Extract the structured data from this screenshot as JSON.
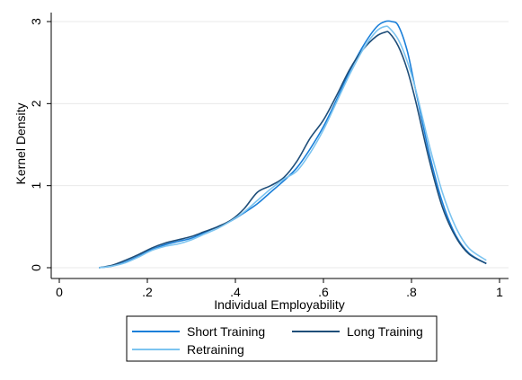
{
  "chart_data": {
    "type": "line",
    "xlabel": "Individual Employability",
    "ylabel": "Kernel Density",
    "xlim": [
      0,
      1
    ],
    "ylim": [
      0,
      3
    ],
    "x_ticks": [
      0,
      0.2,
      0.4,
      0.6,
      0.8,
      1
    ],
    "x_tick_labels": [
      "0",
      ".2",
      ".4",
      ".6",
      ".8",
      "1"
    ],
    "y_ticks": [
      0,
      1,
      2,
      3
    ],
    "y_tick_labels": [
      "0",
      "1",
      "2",
      "3"
    ],
    "grid": "horizontal",
    "legend_placement": "bottom",
    "series": [
      {
        "name": "Short Training",
        "color": "#1a7fd9",
        "x": [
          0.09,
          0.12,
          0.15,
          0.18,
          0.21,
          0.24,
          0.27,
          0.3,
          0.33,
          0.36,
          0.39,
          0.42,
          0.45,
          0.48,
          0.51,
          0.54,
          0.57,
          0.6,
          0.63,
          0.66,
          0.69,
          0.72,
          0.74,
          0.755,
          0.77,
          0.79,
          0.81,
          0.84,
          0.87,
          0.9,
          0.93,
          0.97
        ],
        "y": [
          0.0,
          0.02,
          0.07,
          0.14,
          0.22,
          0.28,
          0.32,
          0.36,
          0.43,
          0.5,
          0.57,
          0.67,
          0.78,
          0.92,
          1.06,
          1.22,
          1.45,
          1.72,
          2.05,
          2.4,
          2.7,
          2.93,
          3.0,
          3.0,
          2.95,
          2.65,
          2.15,
          1.4,
          0.8,
          0.4,
          0.18,
          0.05
        ]
      },
      {
        "name": "Long Training",
        "color": "#1f4e79",
        "x": [
          0.09,
          0.12,
          0.15,
          0.18,
          0.21,
          0.24,
          0.27,
          0.3,
          0.33,
          0.36,
          0.39,
          0.42,
          0.45,
          0.48,
          0.51,
          0.54,
          0.57,
          0.6,
          0.63,
          0.66,
          0.69,
          0.72,
          0.74,
          0.75,
          0.77,
          0.79,
          0.81,
          0.84,
          0.87,
          0.9,
          0.93,
          0.97
        ],
        "y": [
          0.0,
          0.03,
          0.09,
          0.16,
          0.24,
          0.3,
          0.34,
          0.38,
          0.44,
          0.5,
          0.58,
          0.72,
          0.92,
          1.0,
          1.1,
          1.3,
          1.58,
          1.8,
          2.1,
          2.42,
          2.66,
          2.82,
          2.87,
          2.86,
          2.7,
          2.42,
          2.02,
          1.32,
          0.74,
          0.38,
          0.17,
          0.05
        ]
      },
      {
        "name": "Retraining",
        "color": "#7cc4f0",
        "x": [
          0.09,
          0.12,
          0.15,
          0.18,
          0.21,
          0.24,
          0.27,
          0.3,
          0.33,
          0.36,
          0.39,
          0.42,
          0.45,
          0.48,
          0.51,
          0.54,
          0.57,
          0.6,
          0.63,
          0.66,
          0.69,
          0.72,
          0.74,
          0.75,
          0.77,
          0.79,
          0.81,
          0.84,
          0.87,
          0.9,
          0.93,
          0.97
        ],
        "y": [
          0.0,
          0.02,
          0.06,
          0.13,
          0.21,
          0.26,
          0.29,
          0.34,
          0.41,
          0.48,
          0.57,
          0.68,
          0.82,
          0.96,
          1.08,
          1.18,
          1.4,
          1.68,
          2.02,
          2.36,
          2.66,
          2.88,
          2.94,
          2.92,
          2.78,
          2.52,
          2.16,
          1.5,
          0.92,
          0.5,
          0.24,
          0.09
        ]
      }
    ]
  }
}
